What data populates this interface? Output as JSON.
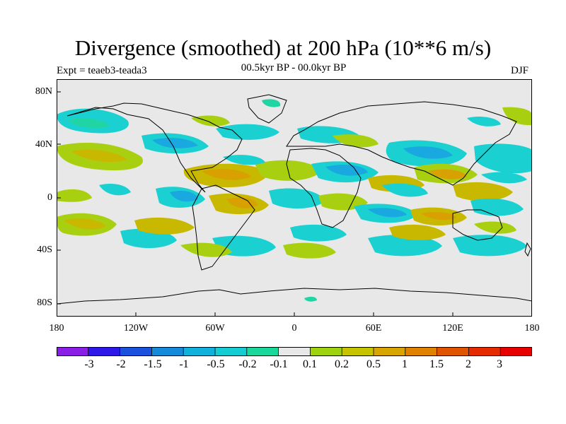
{
  "title": "Divergence (smoothed) at 200 hPa (10**6 m/s)",
  "subtitle": "00.5kyr BP - 00.0kyr BP",
  "experiment": "Expt = teaeb3-teada3",
  "season": "DJF",
  "colors": {
    "background": "#e8e8e8",
    "coast": "#000000",
    "cyan": "#1ad0d0",
    "blue": "#19a8e0",
    "teal": "#21d4a4",
    "green": "#a8d010",
    "olive": "#c8b800",
    "orange": "#d8a000"
  },
  "axes": {
    "lon_ticks": [
      "180",
      "120W",
      "60W",
      "0",
      "60E",
      "120E",
      "180"
    ],
    "lat_ticks": [
      "80N",
      "40N",
      "0",
      "40S",
      "80S"
    ]
  },
  "colorbar": {
    "labels": [
      "-3",
      "-2",
      "-1.5",
      "-1",
      "-0.5",
      "-0.2",
      "-0.1",
      "0.1",
      "0.2",
      "0.5",
      "1",
      "1.5",
      "2",
      "3"
    ],
    "colors": [
      "#8a1ee6",
      "#2d18e8",
      "#1a52de",
      "#148ad8",
      "#10b2dc",
      "#14cdd2",
      "#1ad89c",
      "#e8e8e8",
      "#9ed20e",
      "#c6c400",
      "#d8a400",
      "#de8200",
      "#e05400",
      "#e52a00",
      "#e60000"
    ]
  }
}
